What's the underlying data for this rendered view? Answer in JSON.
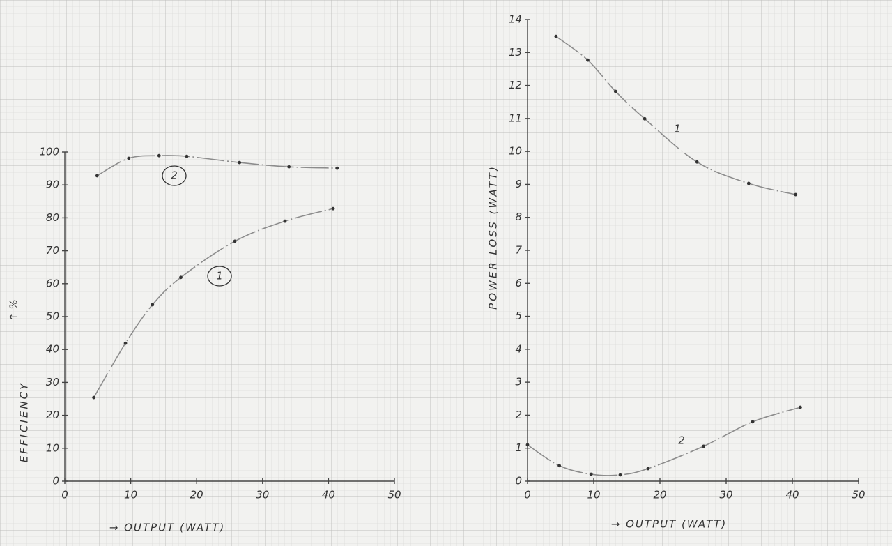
{
  "chart_data": [
    {
      "type": "line",
      "xlabel": "→ OUTPUT (WATT)",
      "ylabel": "EFFICIENCY",
      "yunit": "↑ %",
      "xlim": [
        0,
        50
      ],
      "xticks": [
        0,
        10,
        20,
        30,
        40,
        50
      ],
      "ylim": [
        0,
        100
      ],
      "yticks": [
        0,
        10,
        20,
        30,
        40,
        50,
        60,
        70,
        80,
        90,
        100
      ],
      "series": [
        {
          "name": "1",
          "color": "#8c8c8c",
          "x": [
            4.4,
            9.2,
            13.3,
            17.6,
            25.8,
            33.4,
            40.7
          ],
          "values": [
            25.4,
            41.9,
            53.6,
            61.9,
            72.9,
            79,
            82.8
          ]
        },
        {
          "name": "2",
          "color": "#8c8c8c",
          "x": [
            4.9,
            9.7,
            14.3,
            18.5,
            26.5,
            34,
            41.3
          ],
          "values": [
            92.8,
            98.1,
            98.9,
            98.7,
            96.8,
            95.5,
            95.1
          ]
        }
      ]
    },
    {
      "type": "line",
      "xlabel": "→ OUTPUT (WATT)",
      "ylabel": "POWER LOSS (WATT)",
      "xlim": [
        0,
        50
      ],
      "xticks": [
        0,
        10,
        20,
        30,
        40,
        50
      ],
      "ylim": [
        0,
        14
      ],
      "yticks": [
        0,
        1,
        2,
        3,
        4,
        5,
        6,
        7,
        8,
        9,
        10,
        11,
        12,
        13,
        14
      ],
      "series": [
        {
          "name": "1",
          "color": "#8c8c8c",
          "x": [
            4.3,
            9.1,
            13.3,
            17.7,
            25.6,
            33.4,
            40.5
          ],
          "values": [
            13.49,
            12.77,
            11.82,
            10.99,
            9.68,
            9.03,
            8.69
          ]
        },
        {
          "name": "2",
          "color": "#8c8c8c",
          "x": [
            0,
            4.8,
            9.6,
            14,
            18.2,
            26.6,
            34,
            41.2
          ],
          "values": [
            1.1,
            0.47,
            0.21,
            0.19,
            0.38,
            1.06,
            1.8,
            2.24
          ]
        }
      ]
    }
  ]
}
